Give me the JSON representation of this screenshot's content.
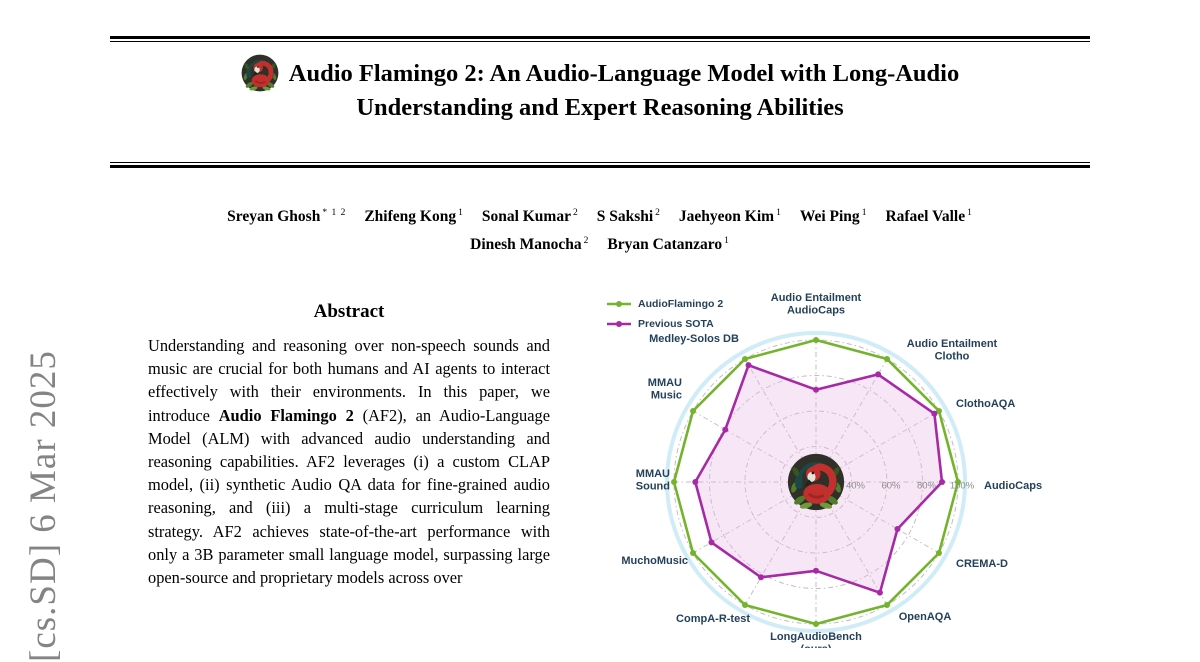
{
  "arxiv_stamp": "[cs.SD] 6 Mar 2025",
  "title": {
    "line1": "Audio Flamingo 2: An Audio-Language Model with Long-Audio",
    "line2": "Understanding and Expert Reasoning Abilities",
    "logo_icon": "flamingo-logo-icon"
  },
  "authors": {
    "line1": [
      {
        "name": "Sreyan Ghosh",
        "sup": "* 1 2"
      },
      {
        "name": "Zhifeng Kong",
        "sup": "1"
      },
      {
        "name": "Sonal Kumar",
        "sup": "2"
      },
      {
        "name": "S Sakshi",
        "sup": "2"
      },
      {
        "name": "Jaehyeon Kim",
        "sup": "1"
      },
      {
        "name": "Wei Ping",
        "sup": "1"
      },
      {
        "name": "Rafael Valle",
        "sup": "1"
      }
    ],
    "line2": [
      {
        "name": "Dinesh Manocha",
        "sup": "2"
      },
      {
        "name": "Bryan Catanzaro",
        "sup": "1"
      }
    ]
  },
  "abstract": {
    "heading": "Abstract",
    "p1": "Understanding and reasoning over non-speech sounds and music are crucial for both humans and AI agents to interact effectively with their environments. In this paper, we introduce ",
    "bold": "Audio Flamingo 2",
    "p2": " (AF2), an Audio-Language Model (ALM) with advanced audio understanding and reasoning capabilities. AF2 leverages (i) a custom CLAP model, (ii) synthetic Audio QA data for fine-grained audio reasoning, and (iii) a multi-stage curriculum learning strategy. AF2 achieves state-of-the-art performance with only a 3B parameter small language model, surpassing large open-source and proprietary models across over"
  },
  "chart_data": {
    "type": "radar",
    "axes": [
      [
        "Audio Entailment",
        "AudioCaps"
      ],
      [
        "Audio Entailment",
        "Clotho"
      ],
      [
        "ClothoAQA"
      ],
      [
        "AudioCaps"
      ],
      [
        "CREMA-D"
      ],
      [
        "OpenAQA"
      ],
      [
        "LongAudioBench",
        "(ours)"
      ],
      [
        "CompA-R-test"
      ],
      [
        "MuchoMusic"
      ],
      [
        "MMAU",
        "Sound"
      ],
      [
        "MMAU",
        "Music"
      ],
      [
        "Medley-Solos DB"
      ]
    ],
    "series": [
      {
        "name": "AudioFlamingo 2",
        "color": "#74b42c",
        "values": [
          100,
          100,
          100,
          100,
          100,
          100,
          100,
          100,
          100,
          100,
          100,
          100
        ]
      },
      {
        "name": "Previous SOTA",
        "color": "#a62aa6",
        "fill": "rgba(232,186,228,0.35)",
        "values": [
          72,
          90,
          97,
          91,
          73,
          92,
          70,
          82,
          88,
          88,
          79,
          96
        ]
      }
    ],
    "radial_ticks": [
      {
        "label": "40%",
        "value": 40
      },
      {
        "label": "60%",
        "value": 60
      },
      {
        "label": "80%",
        "value": 80
      },
      {
        "label": "100%",
        "value": 100
      }
    ],
    "scale": {
      "center_value": 20,
      "max_value": 100
    },
    "legend_position": "top-left",
    "grid": "dash-dot",
    "colors": {
      "grid": "#c3bbc3",
      "outer_ring": "#cfecf7",
      "axis_label": "#24415a",
      "tick_label": "#8c8c8c"
    }
  }
}
